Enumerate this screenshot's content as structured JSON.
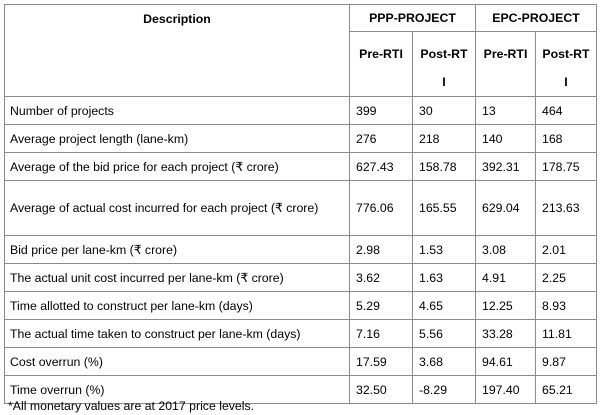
{
  "table": {
    "headers": {
      "description": "Description",
      "ppp": "PPP-PROJECT",
      "epc": "EPC-PROJECT",
      "ppp_pre": "Pre-RTI",
      "ppp_post_line1": "Post-RT",
      "ppp_post_line2": "I",
      "epc_pre": "Pre-RTI",
      "epc_post_line1": "Post-RT",
      "epc_post_line2": "I"
    },
    "rows": [
      {
        "desc": "Number of projects",
        "ppp_pre": "399",
        "ppp_post": "30",
        "epc_pre": "13",
        "epc_post": "464"
      },
      {
        "desc": "Average project length (lane-km)",
        "ppp_pre": "276",
        "ppp_post": "218",
        "epc_pre": "140",
        "epc_post": "168"
      },
      {
        "desc": "Average of the bid price for each project (₹ crore)",
        "ppp_pre": "627.43",
        "ppp_post": "158.78",
        "epc_pre": "392.31",
        "epc_post": "178.75"
      },
      {
        "desc": "Average of actual cost incurred for each project (₹ crore)",
        "ppp_pre": "776.06",
        "ppp_post": "165.55",
        "epc_pre": "629.04",
        "epc_post": "213.63"
      },
      {
        "desc": "Bid price per lane-km (₹ crore)",
        "ppp_pre": "2.98",
        "ppp_post": "1.53",
        "epc_pre": "3.08",
        "epc_post": "2.01"
      },
      {
        "desc": "The actual unit cost incurred per lane-km (₹ crore)",
        "ppp_pre": "3.62",
        "ppp_post": "1.63",
        "epc_pre": "4.91",
        "epc_post": "2.25"
      },
      {
        "desc": "Time allotted to construct per lane-km (days)",
        "ppp_pre": "5.29",
        "ppp_post": "4.65",
        "epc_pre": "12.25",
        "epc_post": "8.93"
      },
      {
        "desc": "The actual time taken to construct per lane-km (days)",
        "ppp_pre": "7.16",
        "ppp_post": "5.56",
        "epc_pre": "33.28",
        "epc_post": "11.81"
      },
      {
        "desc": "Cost overrun (%)",
        "ppp_pre": "17.59",
        "ppp_post": "3.68",
        "epc_pre": "94.61",
        "epc_post": "9.87"
      },
      {
        "desc": "Time overrun (%)",
        "ppp_pre": "32.50",
        "ppp_post": "-8.29",
        "epc_pre": "197.40",
        "epc_post": "65.21"
      }
    ]
  },
  "footnote": "*All monetary values are at 2017 price levels."
}
